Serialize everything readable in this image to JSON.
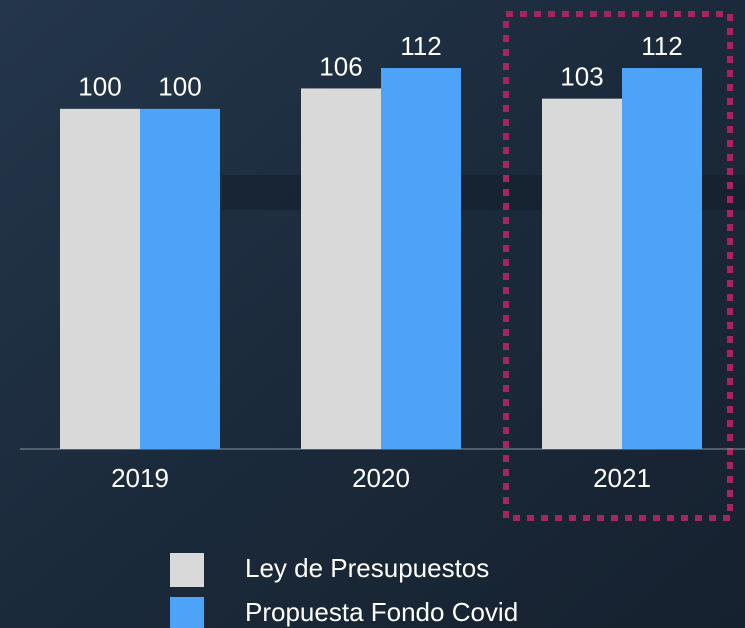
{
  "chart_data": {
    "type": "bar",
    "categories": [
      "2019",
      "2020",
      "2021"
    ],
    "series": [
      {
        "name": "Ley de Presupuestos",
        "color": "#d9d9d9",
        "values": [
          100,
          106,
          103
        ]
      },
      {
        "name": "Propuesta Fondo Covid",
        "color": "#4da3f7",
        "values": [
          100,
          112,
          112
        ]
      }
    ],
    "ylim": [
      0,
      132
    ],
    "grid": false
  }
}
